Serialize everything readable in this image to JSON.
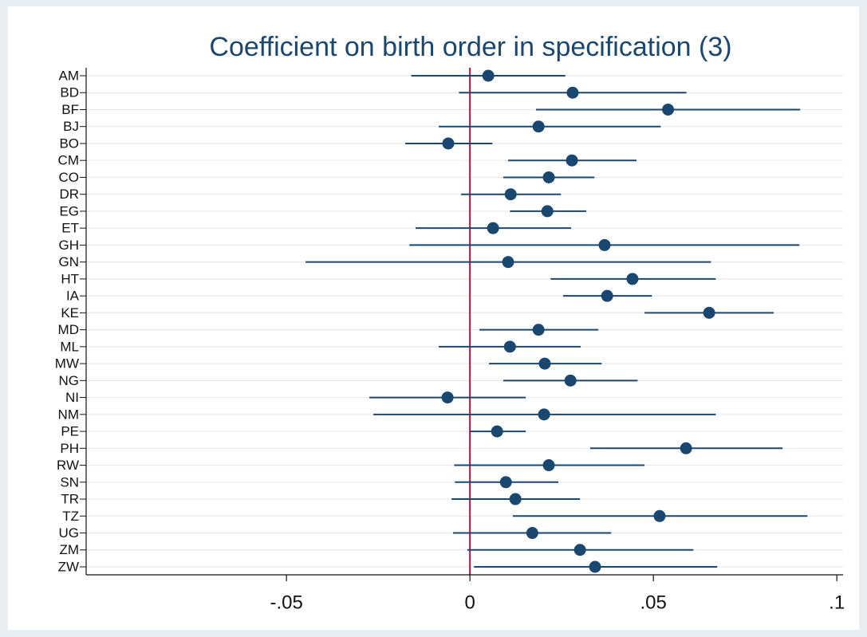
{
  "chart_data": {
    "type": "coefplot",
    "title": "Coefficient on birth order in specification (3)",
    "categories": [
      "AM",
      "BD",
      "BF",
      "BJ",
      "BO",
      "CM",
      "CO",
      "DR",
      "EG",
      "ET",
      "GH",
      "GN",
      "HT",
      "IA",
      "KE",
      "MD",
      "ML",
      "MW",
      "NG",
      "NI",
      "NM",
      "PE",
      "PH",
      "RW",
      "SN",
      "TR",
      "TZ",
      "UG",
      "ZM",
      "ZW"
    ],
    "series": [
      {
        "color": "#1a476f",
        "values": [
          0.005,
          0.028,
          0.054,
          0.0187,
          -0.0059,
          0.0278,
          0.0215,
          0.0111,
          0.0211,
          0.0063,
          0.0367,
          0.0104,
          0.0443,
          0.0374,
          0.0652,
          0.0187,
          0.0109,
          0.0204,
          0.0274,
          -0.0061,
          0.0202,
          0.0074,
          0.0589,
          0.0215,
          0.0098,
          0.0124,
          0.0517,
          0.017,
          0.03,
          0.0341
        ],
        "lower": [
          -0.016,
          -0.003,
          0.018,
          -0.0085,
          -0.0176,
          0.0104,
          0.0091,
          -0.0024,
          0.0109,
          -0.0148,
          -0.0165,
          -0.0448,
          0.022,
          0.0254,
          0.0476,
          0.0026,
          -0.0085,
          0.0052,
          0.0091,
          -0.0274,
          -0.0263,
          0,
          0.0328,
          -0.0043,
          -0.0041,
          -0.005,
          0.0117,
          -0.0046,
          -0.0007,
          0.0011
        ],
        "upper": [
          0.026,
          0.059,
          0.09,
          0.052,
          0.0061,
          0.0454,
          0.0339,
          0.0248,
          0.0317,
          0.0276,
          0.0898,
          0.0657,
          0.067,
          0.0496,
          0.0828,
          0.035,
          0.0302,
          0.0359,
          0.0457,
          0.0152,
          0.067,
          0.0152,
          0.0852,
          0.0476,
          0.0241,
          0.03,
          0.092,
          0.0385,
          0.0609,
          0.0674
        ]
      }
    ],
    "xlim": [
      -0.1046,
      0.1017
    ],
    "xticks": [
      {
        "value": -0.05,
        "label": "-.05"
      },
      0,
      {
        "value": 0.05,
        "label": ".05"
      },
      {
        "value": 0.1,
        "label": ".1"
      }
    ],
    "xline": 0,
    "xline_color": "#b5103b",
    "grid": true
  }
}
